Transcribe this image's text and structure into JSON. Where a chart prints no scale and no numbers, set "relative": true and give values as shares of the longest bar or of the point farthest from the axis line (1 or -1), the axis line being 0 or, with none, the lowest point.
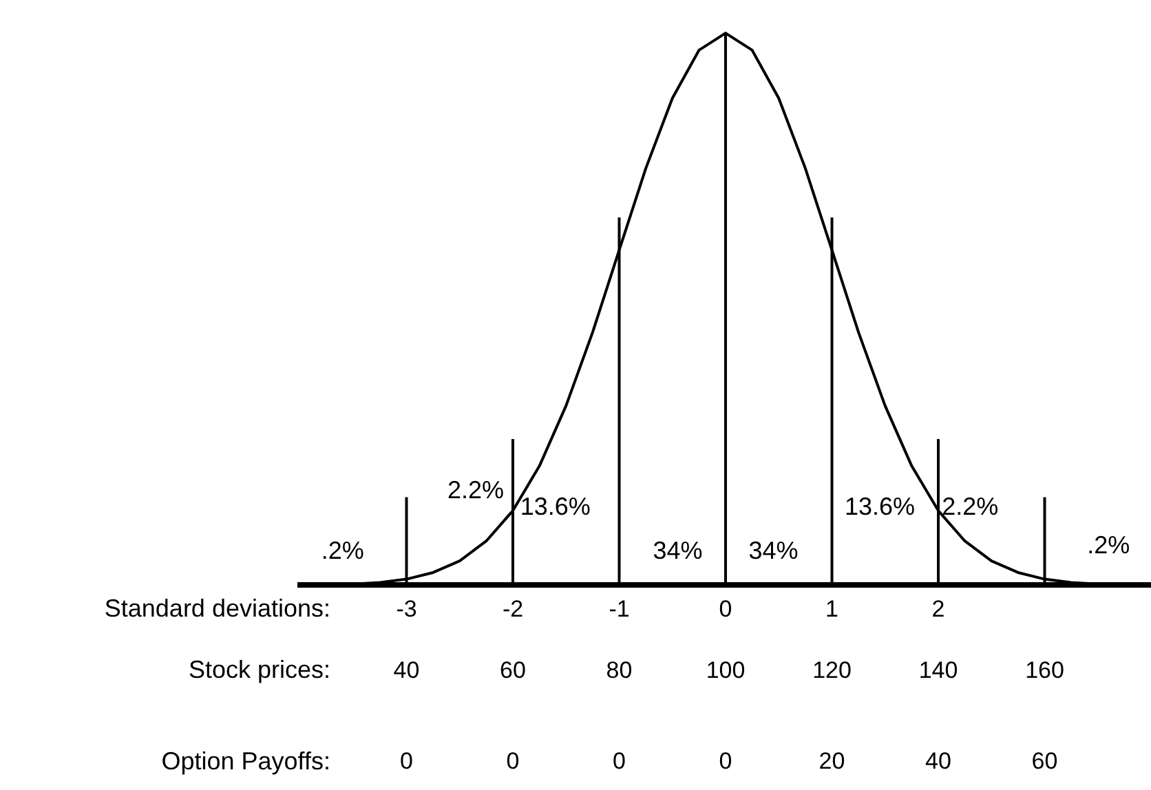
{
  "chart_data": {
    "type": "line",
    "relative": true,
    "xlabel": "Standard deviations:",
    "x2label": "Stock prices:",
    "xlim": [
      -4,
      4
    ],
    "xticks": [
      -3,
      -2,
      -1,
      0,
      1,
      2
    ],
    "x2lim": [
      20,
      180
    ],
    "x2ticks": [
      40,
      60,
      80,
      100,
      120,
      140,
      160
    ],
    "series": [
      {
        "color": "#000000",
        "x": [
          -3.5,
          -3.25,
          -3,
          -2.75,
          -2.5,
          -2.25,
          -2,
          -1.75,
          -1.5,
          -1.25,
          -1,
          -0.75,
          -0.5,
          -0.25,
          0,
          0.25,
          0.5,
          0.75,
          1,
          1.25,
          1.5,
          1.75,
          2,
          2.25,
          2.5,
          2.75,
          3,
          3.25,
          3.5
        ],
        "values": [
          0.002,
          0.005,
          0.011,
          0.023,
          0.044,
          0.08,
          0.135,
          0.216,
          0.325,
          0.458,
          0.607,
          0.755,
          0.882,
          0.969,
          1,
          0.969,
          0.882,
          0.755,
          0.607,
          0.458,
          0.325,
          0.216,
          0.135,
          0.08,
          0.044,
          0.023,
          0.011,
          0.005,
          0.002
        ]
      }
    ],
    "ref_lines": [
      {
        "axis": "x",
        "value": -3,
        "color": "#000000"
      },
      {
        "axis": "x",
        "value": -2,
        "color": "#000000"
      },
      {
        "axis": "x",
        "value": -1,
        "color": "#000000"
      },
      {
        "axis": "x",
        "value": 0,
        "color": "#000000"
      },
      {
        "axis": "x",
        "value": 1,
        "color": "#000000"
      },
      {
        "axis": "x",
        "value": 2,
        "color": "#000000"
      },
      {
        "axis": "x",
        "value": 3,
        "color": "#000000"
      }
    ],
    "annotations": [
      ".2%",
      "2.2%",
      "13.6%",
      "34%",
      "34%",
      "13.6%",
      "2.2%",
      ".2%",
      "Option Payoffs:",
      "0",
      "0",
      "0",
      "0",
      "20",
      "40",
      "60"
    ],
    "grid": false,
    "legend": false,
    "marker": "none",
    "line_style": "solid"
  }
}
